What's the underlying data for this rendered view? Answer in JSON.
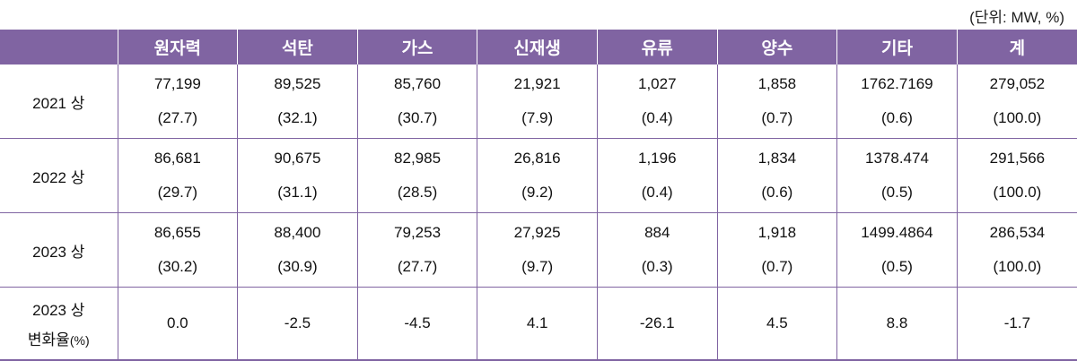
{
  "unit_note": "(단위: MW, %)",
  "columns": [
    "",
    "원자력",
    "석탄",
    "가스",
    "신재생",
    "유류",
    "양수",
    "기타",
    "계"
  ],
  "rows": [
    {
      "label": "2021 상",
      "values": [
        "77,199",
        "89,525",
        "85,760",
        "21,921",
        "1,027",
        "1,858",
        "1762.7169",
        "279,052"
      ],
      "shares": [
        "(27.7)",
        "(32.1)",
        "(30.7)",
        "(7.9)",
        "(0.4)",
        "(0.7)",
        "(0.6)",
        "(100.0)"
      ]
    },
    {
      "label": "2022 상",
      "values": [
        "86,681",
        "90,675",
        "82,985",
        "26,816",
        "1,196",
        "1,834",
        "1378.474",
        "291,566"
      ],
      "shares": [
        "(29.7)",
        "(31.1)",
        "(28.5)",
        "(9.2)",
        "(0.4)",
        "(0.6)",
        "(0.5)",
        "(100.0)"
      ]
    },
    {
      "label": "2023 상",
      "values": [
        "86,655",
        "88,400",
        "79,253",
        "27,925",
        "884",
        "1,918",
        "1499.4864",
        "286,534"
      ],
      "shares": [
        "(30.2)",
        "(30.9)",
        "(27.7)",
        "(9.7)",
        "(0.3)",
        "(0.7)",
        "(0.5)",
        "(100.0)"
      ]
    }
  ],
  "change_row": {
    "label_line1": "2023 상",
    "label_line2": "변화율",
    "label_suffix": "(%)",
    "values": [
      "0.0",
      "-2.5",
      "-4.5",
      "4.1",
      "-26.1",
      "4.5",
      "8.8",
      "-1.7"
    ]
  }
}
